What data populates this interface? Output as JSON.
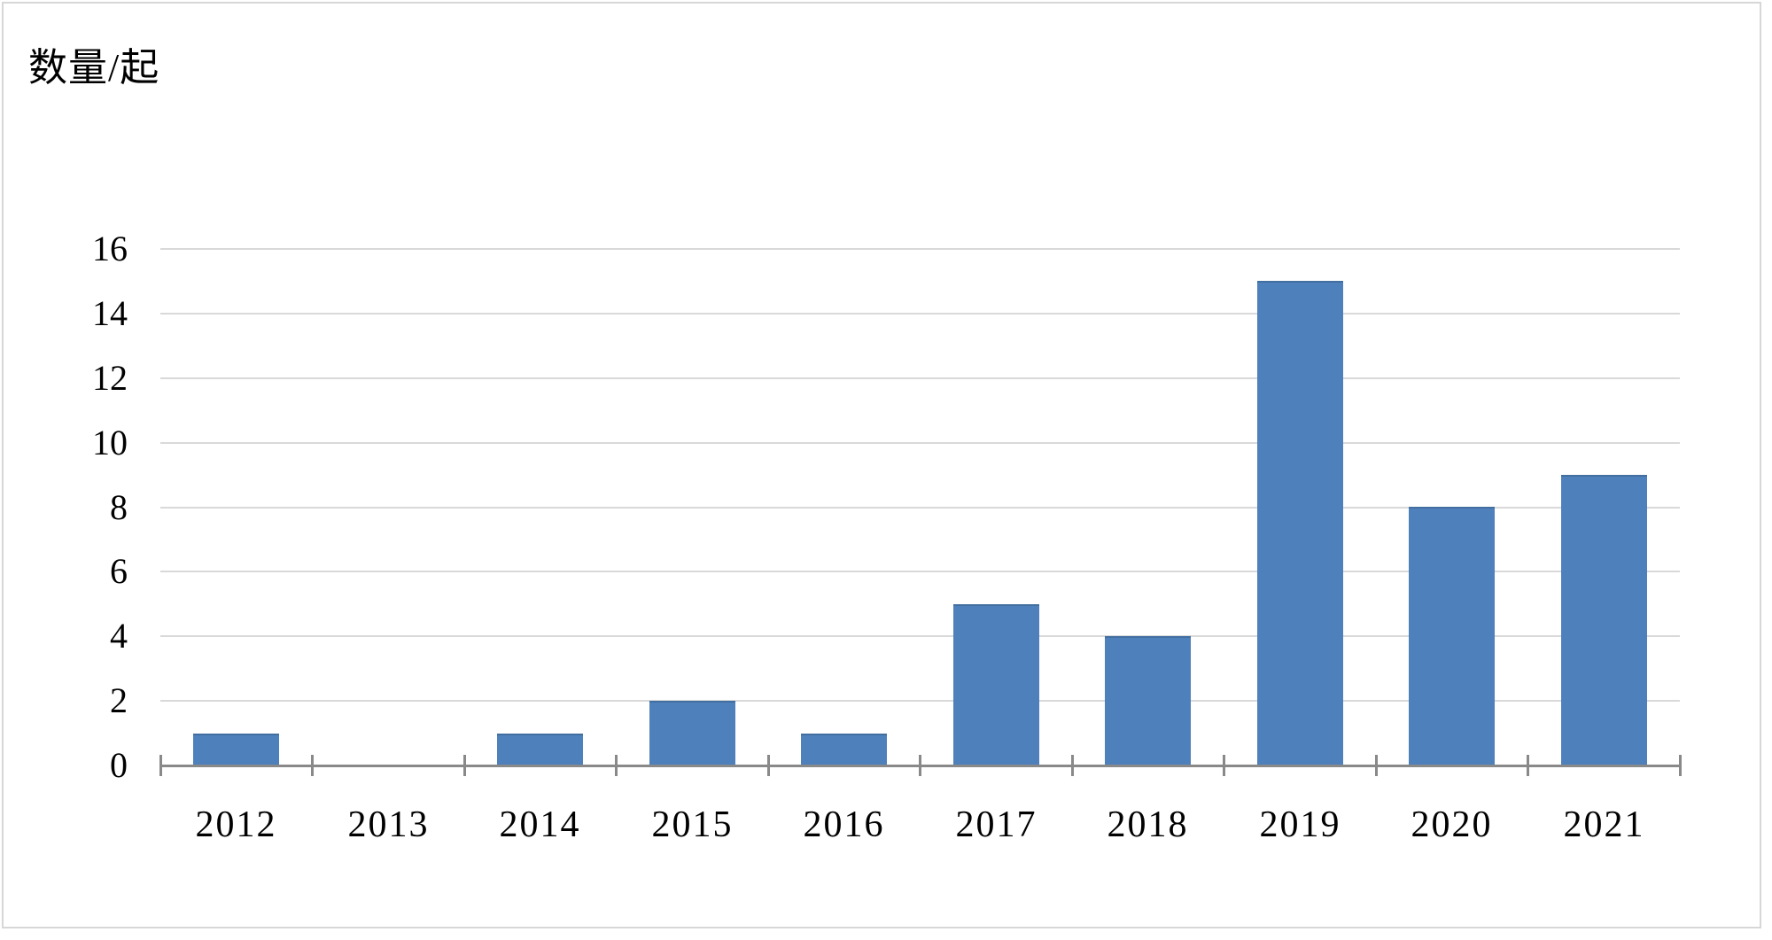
{
  "chart_data": {
    "type": "bar",
    "title": "",
    "unit_label": "数量/起",
    "categories": [
      "2012",
      "2013",
      "2014",
      "2015",
      "2016",
      "2017",
      "2018",
      "2019",
      "2020",
      "2021"
    ],
    "values": [
      1,
      0,
      1,
      2,
      1,
      5,
      4,
      15,
      8,
      9
    ],
    "series_name": "数量/起",
    "xlabel": "",
    "ylabel": "",
    "ylim": [
      0,
      16
    ],
    "ytick_step": 2,
    "yticks": [
      0,
      2,
      4,
      6,
      8,
      10,
      12,
      14,
      16
    ],
    "grid": "horizontal-only",
    "legend_position": "none",
    "bar_color": "#4E80BC",
    "bar_edge_color": "#426FA0",
    "gridline_color": "#D9D9D9",
    "axis_color": "#898989",
    "text_color": "#000000",
    "frame_border_color": "#D7D7D7",
    "background_color": "#FFFFFF"
  }
}
